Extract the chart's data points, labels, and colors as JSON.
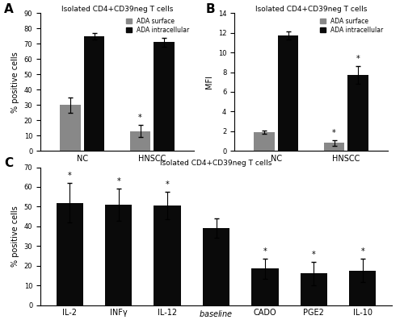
{
  "panelA": {
    "title": "Isolated CD4+CD39neg T cells",
    "ylabel": "% positive cells",
    "ylim": [
      0,
      90
    ],
    "yticks": [
      0,
      10,
      20,
      30,
      40,
      50,
      60,
      70,
      80,
      90
    ],
    "groups": [
      "NC",
      "HNSCC"
    ],
    "surface_means": [
      30,
      13
    ],
    "surface_errors": [
      5,
      4
    ],
    "intracellular_means": [
      75,
      71
    ],
    "intracellular_errors": [
      2,
      3
    ],
    "surface_color": "#888888",
    "intracellular_color": "#0a0a0a",
    "asterisk_surface": [
      false,
      true
    ],
    "asterisk_intracellular": [
      false,
      false
    ]
  },
  "panelB": {
    "title": "Isolated CD4+CD39neg T cells",
    "ylabel": "MFI",
    "ylim": [
      0,
      14
    ],
    "yticks": [
      0,
      2,
      4,
      6,
      8,
      10,
      12,
      14
    ],
    "groups": [
      "NC",
      "HNSCC"
    ],
    "surface_means": [
      1.9,
      0.8
    ],
    "surface_errors": [
      0.2,
      0.25
    ],
    "intracellular_means": [
      11.7,
      7.7
    ],
    "intracellular_errors": [
      0.4,
      0.9
    ],
    "surface_color": "#888888",
    "intracellular_color": "#0a0a0a",
    "asterisk_surface": [
      false,
      true
    ],
    "asterisk_intracellular": [
      false,
      true
    ]
  },
  "panelC": {
    "title": "Isolated CD4+CD39neg T cells",
    "ylabel": "% positive cells",
    "ylim": [
      0,
      70
    ],
    "yticks": [
      0,
      10,
      20,
      30,
      40,
      50,
      60,
      70
    ],
    "categories": [
      "IL-2",
      "INFγ",
      "IL-12",
      "baseline",
      "CADO",
      "PGE2",
      "IL-10"
    ],
    "means": [
      52,
      51,
      50.5,
      39,
      18.5,
      16,
      17.5
    ],
    "errors": [
      10,
      8,
      7,
      5,
      5,
      6,
      6
    ],
    "bar_color": "#0a0a0a",
    "asterisk": [
      true,
      true,
      true,
      false,
      true,
      true,
      true
    ]
  },
  "legend_surface": "ADA surface",
  "legend_intracellular": "ADA intracellular"
}
